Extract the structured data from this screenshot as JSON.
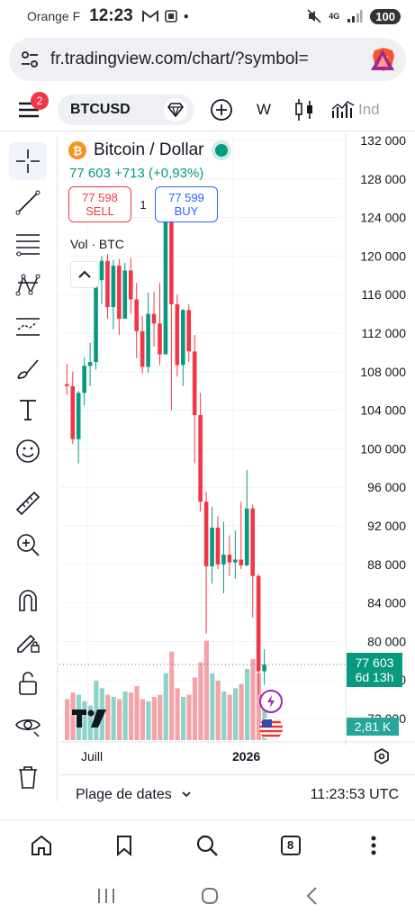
{
  "status_bar": {
    "carrier": "Orange F",
    "time": "12:23",
    "battery": "100",
    "signal_label": "4G"
  },
  "browser": {
    "url": "fr.tradingview.com/chart/?symbol=",
    "menu_badge": "2",
    "tab_count": "8"
  },
  "toolbar": {
    "symbol": "BTCUSD",
    "interval": "W",
    "indicators_label": "Ind"
  },
  "legend": {
    "title": "Bitcoin / Dollar",
    "price": "77 603",
    "change": "+713 (+0,93%)",
    "sell_price": "77 598",
    "sell_label": "SELL",
    "spread": "1",
    "buy_price": "77 599",
    "buy_label": "BUY",
    "volume_label": "Vol · BTC"
  },
  "price_tag": {
    "price": "77 603",
    "countdown": "6d 13h",
    "volume": "2,81 K"
  },
  "time_axis": {
    "labels": [
      "Juill",
      "2026"
    ]
  },
  "date_bar": {
    "range_label": "Plage de dates",
    "clock": "11:23:53 UTC"
  },
  "colors": {
    "up": "#089981",
    "down": "#f23645",
    "accent": "#2962ff"
  },
  "chart_data": {
    "type": "candlestick",
    "timeframe": "W",
    "y_axis": {
      "ticks": [
        "132 000",
        "128 000",
        "124 000",
        "120 000",
        "116 000",
        "112 000",
        "108 000",
        "104 000",
        "100 000",
        "96 000",
        "92 000",
        "88 000",
        "84 000",
        "80 000",
        "76 000",
        "72 000"
      ],
      "ylim": [
        71000,
        133000
      ]
    },
    "x_ticks": [
      {
        "label": "Juill",
        "index": 2
      },
      {
        "label": "2026",
        "index": 27
      }
    ],
    "candles": [
      {
        "o": 106700,
        "h": 108800,
        "l": 105600,
        "c": 106500,
        "v": 0.38
      },
      {
        "o": 106500,
        "h": 108000,
        "l": 100500,
        "c": 101000,
        "v": 0.44
      },
      {
        "o": 101000,
        "h": 106000,
        "l": 98500,
        "c": 105800,
        "v": 0.42
      },
      {
        "o": 105800,
        "h": 109500,
        "l": 104500,
        "c": 108600,
        "v": 0.36
      },
      {
        "o": 108600,
        "h": 111000,
        "l": 106500,
        "c": 109000,
        "v": 0.32
      },
      {
        "o": 109000,
        "h": 118500,
        "l": 108200,
        "c": 117500,
        "v": 0.55
      },
      {
        "o": 117500,
        "h": 120000,
        "l": 115000,
        "c": 119500,
        "v": 0.48
      },
      {
        "o": 119500,
        "h": 120200,
        "l": 113500,
        "c": 114700,
        "v": 0.42
      },
      {
        "o": 114700,
        "h": 119600,
        "l": 112400,
        "c": 119000,
        "v": 0.4
      },
      {
        "o": 119000,
        "h": 119700,
        "l": 111800,
        "c": 113500,
        "v": 0.38
      },
      {
        "o": 113500,
        "h": 119300,
        "l": 114000,
        "c": 118500,
        "v": 0.45
      },
      {
        "o": 118500,
        "h": 119800,
        "l": 114000,
        "c": 115500,
        "v": 0.44
      },
      {
        "o": 115500,
        "h": 117200,
        "l": 109400,
        "c": 112200,
        "v": 0.5
      },
      {
        "o": 112200,
        "h": 113800,
        "l": 107800,
        "c": 108500,
        "v": 0.38
      },
      {
        "o": 108500,
        "h": 116200,
        "l": 107900,
        "c": 114000,
        "v": 0.36
      },
      {
        "o": 114000,
        "h": 116300,
        "l": 110600,
        "c": 113000,
        "v": 0.4
      },
      {
        "o": 113000,
        "h": 117200,
        "l": 108700,
        "c": 109800,
        "v": 0.42
      },
      {
        "o": 109800,
        "h": 126200,
        "l": 110000,
        "c": 124300,
        "v": 0.62
      },
      {
        "o": 124300,
        "h": 126000,
        "l": 104000,
        "c": 115000,
        "v": 0.82
      },
      {
        "o": 115000,
        "h": 116000,
        "l": 107500,
        "c": 108700,
        "v": 0.48
      },
      {
        "o": 108700,
        "h": 114500,
        "l": 106500,
        "c": 114400,
        "v": 0.4
      },
      {
        "o": 114400,
        "h": 115000,
        "l": 109000,
        "c": 110100,
        "v": 0.42
      },
      {
        "o": 110100,
        "h": 111800,
        "l": 98500,
        "c": 103500,
        "v": 0.58
      },
      {
        "o": 103500,
        "h": 105800,
        "l": 93500,
        "c": 94500,
        "v": 0.72
      },
      {
        "o": 94500,
        "h": 95500,
        "l": 80800,
        "c": 87800,
        "v": 0.92
      },
      {
        "o": 87800,
        "h": 94000,
        "l": 86000,
        "c": 91800,
        "v": 0.62
      },
      {
        "o": 91800,
        "h": 93000,
        "l": 87500,
        "c": 88000,
        "v": 0.55
      },
      {
        "o": 88000,
        "h": 92400,
        "l": 85000,
        "c": 89000,
        "v": 0.45
      },
      {
        "o": 89000,
        "h": 91000,
        "l": 86800,
        "c": 88200,
        "v": 0.42
      },
      {
        "o": 88200,
        "h": 91500,
        "l": 86500,
        "c": 88500,
        "v": 0.48
      },
      {
        "o": 88500,
        "h": 94500,
        "l": 87500,
        "c": 87900,
        "v": 0.52
      },
      {
        "o": 87900,
        "h": 97800,
        "l": 87800,
        "c": 93800,
        "v": 0.66
      },
      {
        "o": 93800,
        "h": 94200,
        "l": 82500,
        "c": 86800,
        "v": 0.75
      },
      {
        "o": 86800,
        "h": 87000,
        "l": 74500,
        "c": 76900,
        "v": 0.62
      },
      {
        "o": 76900,
        "h": 79200,
        "l": 75500,
        "c": 77603,
        "v": 0.3
      }
    ],
    "last_price": 77603
  }
}
